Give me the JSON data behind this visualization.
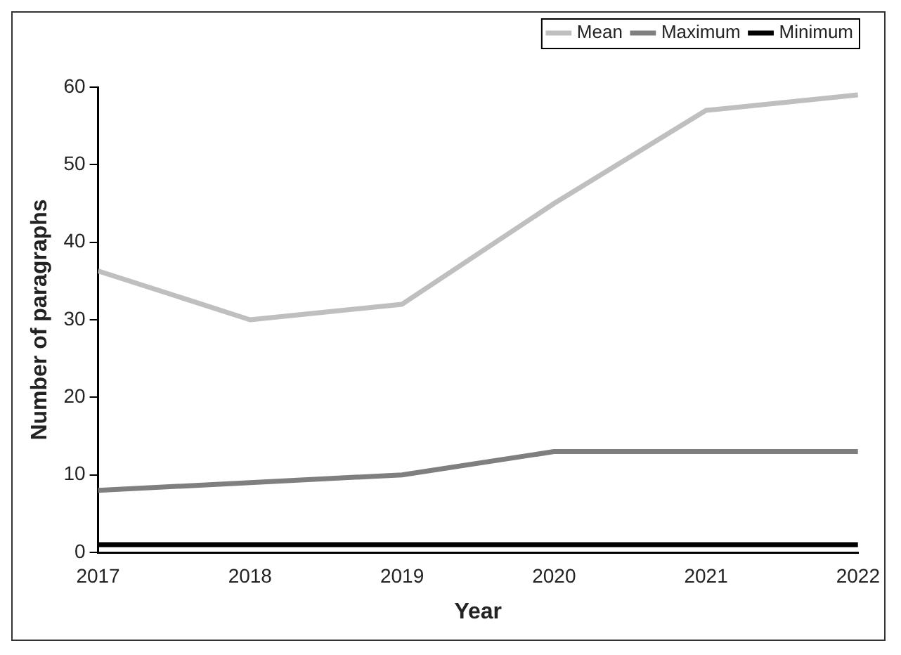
{
  "chart_data": {
    "type": "line",
    "xlabel": "Year",
    "ylabel": "Number of paragraphs",
    "x": [
      2017,
      2018,
      2019,
      2020,
      2021,
      2022
    ],
    "series": [
      {
        "name": "Mean",
        "color": "#bfbfbf",
        "values": [
          36.3,
          30,
          32,
          45,
          57,
          59
        ]
      },
      {
        "name": "Maximum",
        "color": "#7f7f7f",
        "values": [
          8,
          9,
          10,
          13,
          13,
          13
        ]
      },
      {
        "name": "Minimum",
        "color": "#000000",
        "values": [
          1,
          1,
          1,
          1,
          1,
          1
        ]
      }
    ],
    "xlim": [
      2017,
      2022
    ],
    "xticks": [
      2017,
      2018,
      2019,
      2020,
      2021,
      2022
    ],
    "ylim": [
      0,
      60
    ],
    "yticks": [
      0,
      10,
      20,
      30,
      40,
      50,
      60
    ],
    "grid": false,
    "legend": "top right",
    "marker": "none",
    "line_style": "solid"
  }
}
